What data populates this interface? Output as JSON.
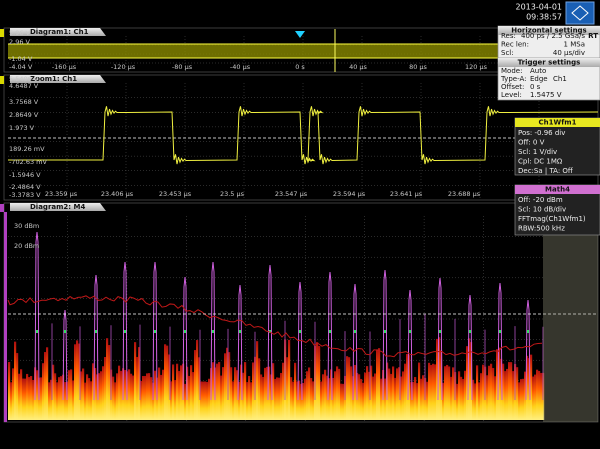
{
  "header": {
    "date": "2013-04-01",
    "time": "09:38:57"
  },
  "diagram1": {
    "title": "Diagram1: Ch1",
    "y_labels": [
      "5.96 V",
      "2.96 V",
      "-1.04 V",
      "-4.04 V"
    ],
    "x_labels": [
      "-160 µs",
      "-120 µs",
      "-80 µs",
      "-40 µs",
      "0 s",
      "40 µs",
      "80 µs",
      "120 µs"
    ]
  },
  "horizontal_settings": {
    "title": "Horizontal settings",
    "rows": [
      [
        "Res:",
        "400 ps / 2.5 GSa/s",
        "RT"
      ],
      [
        "Rec len:",
        "1 MSa"
      ],
      [
        "Scl:",
        "40 µs/div"
      ]
    ]
  },
  "trigger_settings": {
    "title": "Trigger settings",
    "rows": [
      [
        "Mode:",
        "Auto"
      ],
      [
        "Type-A:",
        "Edge",
        "Ch1"
      ],
      [
        "Offset:",
        "0 s"
      ],
      [
        "Level:",
        "1.5475 V"
      ]
    ]
  },
  "zoom1": {
    "title": "Zoom1: Ch1",
    "y_labels": [
      "5.5406 V",
      "4.6487 V",
      "3.7568 V",
      "2.8649 V",
      "1.973 V",
      "189.26 mV",
      "-702.63 mV",
      "-1.5946 V",
      "-2.4864 V",
      "-3.3783 V"
    ],
    "x_labels": [
      "23.359 µs",
      "23.406 µs",
      "23.453 µs",
      "23.5 µs",
      "23.547 µs",
      "23.594 µs",
      "23.641 µs",
      "23.688 µs"
    ]
  },
  "ch1wfm1": {
    "title": "Ch1Wfm1",
    "lines": [
      "Pos: -0.96 div",
      "Off: 0 V",
      "Scl: 1 V/div",
      "Cpl: DC 1MΩ",
      "Dec:Sa | TA: Off"
    ]
  },
  "diagram2": {
    "title": "Diagram2: M4",
    "y_labels": [
      "30 dBm",
      "20 dBm"
    ]
  },
  "math4": {
    "title": "Math4",
    "lines": [
      "Off: -20 dBm",
      "Scl: 10 dB/div",
      "FFTmag(Ch1Wfm1)",
      "RBW:500 kHz"
    ]
  }
}
